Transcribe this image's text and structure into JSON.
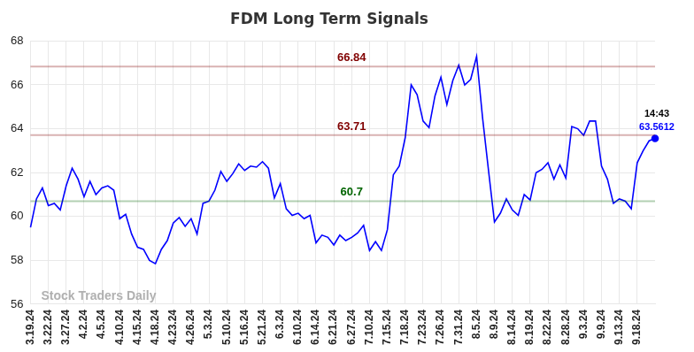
{
  "chart_data": {
    "type": "line",
    "title": "FDM Long Term Signals",
    "categories": [
      "3.19.24",
      null,
      null,
      "3.22.24",
      null,
      null,
      "3.27.24",
      null,
      null,
      "4.2.24",
      null,
      null,
      "4.5.24",
      null,
      null,
      "4.10.24",
      null,
      null,
      "4.15.24",
      null,
      null,
      "4.18.24",
      null,
      null,
      "4.23.24",
      null,
      null,
      "4.26.24",
      null,
      null,
      "5.3.24",
      null,
      null,
      "5.10.24",
      null,
      null,
      "5.16.24",
      null,
      null,
      "5.21.24",
      null,
      null,
      "6.3.24",
      null,
      null,
      "6.10.24",
      null,
      null,
      "6.14.24",
      null,
      null,
      "6.21.24",
      null,
      null,
      "6.27.24",
      null,
      null,
      "7.10.24",
      null,
      null,
      "7.15.24",
      null,
      null,
      "7.18.24",
      null,
      null,
      "7.23.24",
      null,
      null,
      "7.26.24",
      null,
      null,
      "7.31.24",
      null,
      null,
      "8.5.24",
      null,
      null,
      "8.9.24",
      null,
      null,
      "8.14.24",
      null,
      null,
      "8.19.24",
      null,
      null,
      "8.22.24",
      null,
      null,
      "8.28.24",
      null,
      null,
      "9.3.24",
      null,
      null,
      "9.9.24",
      null,
      null,
      "9.13.24",
      null,
      null,
      "9.18.24",
      null,
      null,
      null
    ],
    "values": [
      59.5,
      60.8,
      61.3,
      60.5,
      60.6,
      60.3,
      61.4,
      62.2,
      61.7,
      60.9,
      61.6,
      61.0,
      61.3,
      61.4,
      61.2,
      59.9,
      60.1,
      59.2,
      58.6,
      58.5,
      58.0,
      57.85,
      58.5,
      58.9,
      59.7,
      59.95,
      59.55,
      59.9,
      59.2,
      60.6,
      60.7,
      61.2,
      62.05,
      61.6,
      61.95,
      62.4,
      62.1,
      62.3,
      62.25,
      62.5,
      62.2,
      60.85,
      61.5,
      60.35,
      60.05,
      60.15,
      59.9,
      60.05,
      58.8,
      59.15,
      59.05,
      58.7,
      59.15,
      58.9,
      59.05,
      59.25,
      59.6,
      58.45,
      58.85,
      58.45,
      59.4,
      61.9,
      62.3,
      63.6,
      66.0,
      65.55,
      64.35,
      64.05,
      65.5,
      66.35,
      65.1,
      66.2,
      66.9,
      66.0,
      66.25,
      67.3,
      64.5,
      62.1,
      59.75,
      60.15,
      60.8,
      60.3,
      60.05,
      61.0,
      60.75,
      62.0,
      62.15,
      62.45,
      61.7,
      62.35,
      61.75,
      64.1,
      64.0,
      63.7,
      64.35,
      64.35,
      62.3,
      61.7,
      60.6,
      60.8,
      60.7,
      60.35,
      62.45,
      63.0,
      63.45,
      63.5612
    ],
    "color": "#0000ff",
    "ylim": [
      56,
      68
    ],
    "yticks": [
      56,
      58,
      60,
      62,
      64,
      66,
      68
    ],
    "grid": true,
    "reference_lines": [
      {
        "value": 66.84,
        "color": "#800000"
      },
      {
        "value": 63.71,
        "color": "#800000"
      },
      {
        "value": 60.7,
        "color": "#006400"
      }
    ],
    "annotations": {
      "time": "14:43",
      "watermark": "Stock Traders Daily"
    }
  }
}
